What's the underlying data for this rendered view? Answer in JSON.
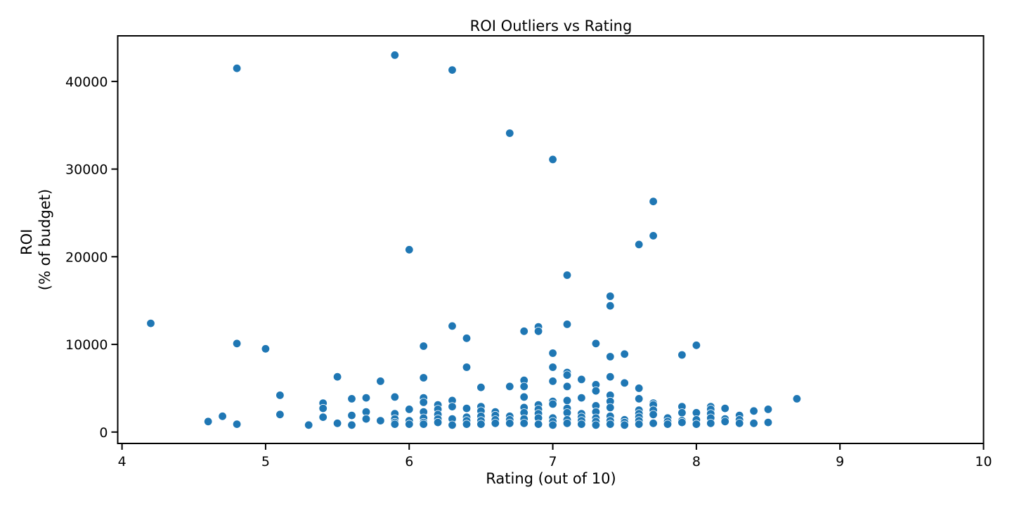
{
  "chart_data": {
    "type": "scatter",
    "title": "ROI Outliers vs Rating",
    "xlabel": "Rating (out of 10)",
    "ylabel_lines": [
      "ROI",
      "(% of budget)"
    ],
    "xlim": [
      3.97,
      10
    ],
    "ylim": [
      -1300,
      45200
    ],
    "xticks": [
      4,
      5,
      6,
      7,
      8,
      9,
      10
    ],
    "yticks": [
      0,
      10000,
      20000,
      30000,
      40000
    ],
    "grid": false,
    "legend": "none",
    "color": "#1f77b4",
    "points": [
      [
        4.2,
        12400
      ],
      [
        4.6,
        1200
      ],
      [
        4.7,
        1800
      ],
      [
        4.8,
        41500
      ],
      [
        4.8,
        10100
      ],
      [
        4.8,
        900
      ],
      [
        5.0,
        9500
      ],
      [
        5.1,
        4200
      ],
      [
        5.1,
        2000
      ],
      [
        5.3,
        800
      ],
      [
        5.4,
        3300
      ],
      [
        5.4,
        2700
      ],
      [
        5.4,
        1700
      ],
      [
        5.5,
        6300
      ],
      [
        5.5,
        1000
      ],
      [
        5.6,
        3800
      ],
      [
        5.6,
        1900
      ],
      [
        5.6,
        800
      ],
      [
        5.7,
        3900
      ],
      [
        5.7,
        2300
      ],
      [
        5.7,
        1500
      ],
      [
        5.8,
        5800
      ],
      [
        5.8,
        1300
      ],
      [
        5.9,
        43000
      ],
      [
        5.9,
        4000
      ],
      [
        5.9,
        2100
      ],
      [
        5.9,
        1500
      ],
      [
        5.9,
        1100
      ],
      [
        5.9,
        900
      ],
      [
        6.0,
        20800
      ],
      [
        6.0,
        2600
      ],
      [
        6.0,
        1300
      ],
      [
        6.0,
        900
      ],
      [
        6.1,
        9800
      ],
      [
        6.1,
        6200
      ],
      [
        6.1,
        3900
      ],
      [
        6.1,
        3400
      ],
      [
        6.1,
        2300
      ],
      [
        6.1,
        1600
      ],
      [
        6.1,
        1100
      ],
      [
        6.1,
        900
      ],
      [
        6.2,
        3100
      ],
      [
        6.2,
        2600
      ],
      [
        6.2,
        2000
      ],
      [
        6.2,
        1500
      ],
      [
        6.2,
        1100
      ],
      [
        6.3,
        41300
      ],
      [
        6.3,
        12100
      ],
      [
        6.3,
        3600
      ],
      [
        6.3,
        2900
      ],
      [
        6.3,
        1500
      ],
      [
        6.3,
        800
      ],
      [
        6.4,
        10700
      ],
      [
        6.4,
        7400
      ],
      [
        6.4,
        2700
      ],
      [
        6.4,
        1700
      ],
      [
        6.4,
        1300
      ],
      [
        6.4,
        900
      ],
      [
        6.5,
        5100
      ],
      [
        6.5,
        2900
      ],
      [
        6.5,
        2400
      ],
      [
        6.5,
        1800
      ],
      [
        6.5,
        1300
      ],
      [
        6.5,
        900
      ],
      [
        6.6,
        2300
      ],
      [
        6.6,
        1900
      ],
      [
        6.6,
        1400
      ],
      [
        6.6,
        1000
      ],
      [
        6.7,
        34100
      ],
      [
        6.7,
        5200
      ],
      [
        6.7,
        1800
      ],
      [
        6.7,
        1400
      ],
      [
        6.7,
        1000
      ],
      [
        6.8,
        11500
      ],
      [
        6.8,
        5900
      ],
      [
        6.8,
        5200
      ],
      [
        6.8,
        4000
      ],
      [
        6.8,
        2800
      ],
      [
        6.8,
        2200
      ],
      [
        6.8,
        1500
      ],
      [
        6.8,
        1000
      ],
      [
        6.9,
        12000
      ],
      [
        6.9,
        11500
      ],
      [
        6.9,
        3100
      ],
      [
        6.9,
        2600
      ],
      [
        6.9,
        2100
      ],
      [
        6.9,
        1600
      ],
      [
        6.9,
        900
      ],
      [
        7.0,
        31100
      ],
      [
        7.0,
        9000
      ],
      [
        7.0,
        7400
      ],
      [
        7.0,
        5800
      ],
      [
        7.0,
        3500
      ],
      [
        7.0,
        3200
      ],
      [
        7.0,
        1600
      ],
      [
        7.0,
        1200
      ],
      [
        7.0,
        800
      ],
      [
        7.1,
        17900
      ],
      [
        7.1,
        12300
      ],
      [
        7.1,
        6800
      ],
      [
        7.1,
        6500
      ],
      [
        7.1,
        5200
      ],
      [
        7.1,
        3600
      ],
      [
        7.1,
        2700
      ],
      [
        7.1,
        2200
      ],
      [
        7.1,
        1400
      ],
      [
        7.1,
        1000
      ],
      [
        7.2,
        6000
      ],
      [
        7.2,
        3900
      ],
      [
        7.2,
        2100
      ],
      [
        7.2,
        1700
      ],
      [
        7.2,
        1300
      ],
      [
        7.2,
        900
      ],
      [
        7.3,
        10100
      ],
      [
        7.3,
        5400
      ],
      [
        7.3,
        4700
      ],
      [
        7.3,
        3000
      ],
      [
        7.3,
        2300
      ],
      [
        7.3,
        1600
      ],
      [
        7.3,
        1200
      ],
      [
        7.3,
        800
      ],
      [
        7.4,
        15500
      ],
      [
        7.4,
        14400
      ],
      [
        7.4,
        8600
      ],
      [
        7.4,
        6300
      ],
      [
        7.4,
        4200
      ],
      [
        7.4,
        3500
      ],
      [
        7.4,
        2800
      ],
      [
        7.4,
        1800
      ],
      [
        7.4,
        1300
      ],
      [
        7.4,
        900
      ],
      [
        7.5,
        8900
      ],
      [
        7.5,
        5600
      ],
      [
        7.5,
        1400
      ],
      [
        7.5,
        1100
      ],
      [
        7.5,
        800
      ],
      [
        7.6,
        21400
      ],
      [
        7.6,
        5000
      ],
      [
        7.6,
        3800
      ],
      [
        7.6,
        2500
      ],
      [
        7.6,
        2100
      ],
      [
        7.6,
        1700
      ],
      [
        7.6,
        1300
      ],
      [
        7.6,
        900
      ],
      [
        7.7,
        26300
      ],
      [
        7.7,
        22400
      ],
      [
        7.7,
        3300
      ],
      [
        7.7,
        3100
      ],
      [
        7.7,
        2500
      ],
      [
        7.7,
        2000
      ],
      [
        7.7,
        1000
      ],
      [
        7.8,
        1600
      ],
      [
        7.8,
        1200
      ],
      [
        7.8,
        900
      ],
      [
        7.9,
        8800
      ],
      [
        7.9,
        2900
      ],
      [
        7.9,
        2200
      ],
      [
        7.9,
        1300
      ],
      [
        7.9,
        1100
      ],
      [
        8.0,
        9900
      ],
      [
        8.0,
        2200
      ],
      [
        8.0,
        1400
      ],
      [
        8.0,
        900
      ],
      [
        8.1,
        2900
      ],
      [
        8.1,
        2600
      ],
      [
        8.1,
        2100
      ],
      [
        8.1,
        1600
      ],
      [
        8.1,
        1000
      ],
      [
        8.2,
        2700
      ],
      [
        8.2,
        1500
      ],
      [
        8.2,
        1200
      ],
      [
        8.3,
        1900
      ],
      [
        8.3,
        1400
      ],
      [
        8.3,
        1000
      ],
      [
        8.4,
        2400
      ],
      [
        8.4,
        1000
      ],
      [
        8.5,
        2600
      ],
      [
        8.5,
        1100
      ],
      [
        8.7,
        3800
      ]
    ]
  }
}
